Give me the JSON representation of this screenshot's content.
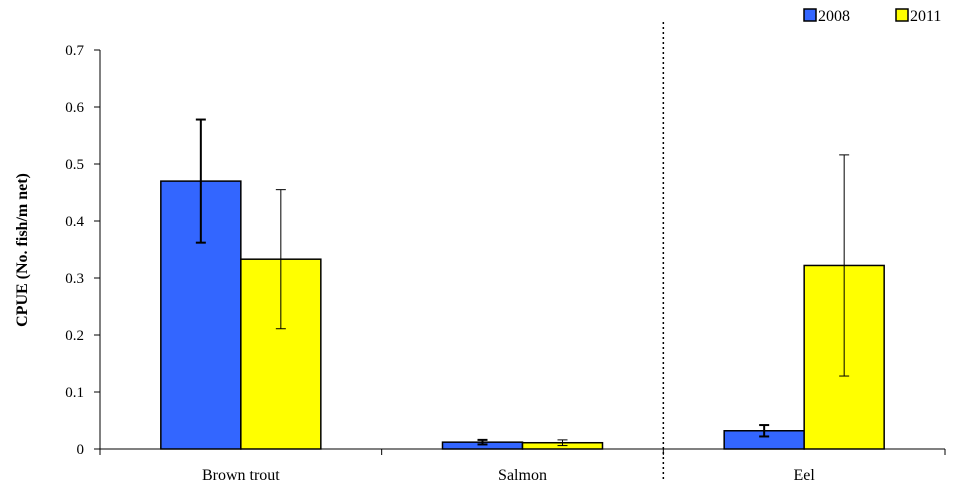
{
  "chart_data": {
    "type": "bar",
    "categories": [
      "Brown trout",
      "Salmon",
      "Eel"
    ],
    "series": [
      {
        "name": "2008",
        "values": [
          0.47,
          0.012,
          0.032
        ],
        "errors": [
          0.108,
          0.004,
          0.01
        ],
        "color": "#3366ff"
      },
      {
        "name": "2011",
        "values": [
          0.333,
          0.011,
          0.322
        ],
        "errors": [
          0.122,
          0.005,
          0.194
        ],
        "color": "#ffff00"
      }
    ],
    "ylabel": "CPUE (No. fish/m net)",
    "xlabel": "",
    "ylim": [
      0,
      0.7
    ],
    "yticks": [
      "0",
      "0.1",
      "0.2",
      "0.3",
      "0.4",
      "0.5",
      "0.6",
      "0.7"
    ],
    "legend_position": "top-right",
    "grid": false,
    "divider": "dotted vertical line between Salmon and Eel"
  }
}
